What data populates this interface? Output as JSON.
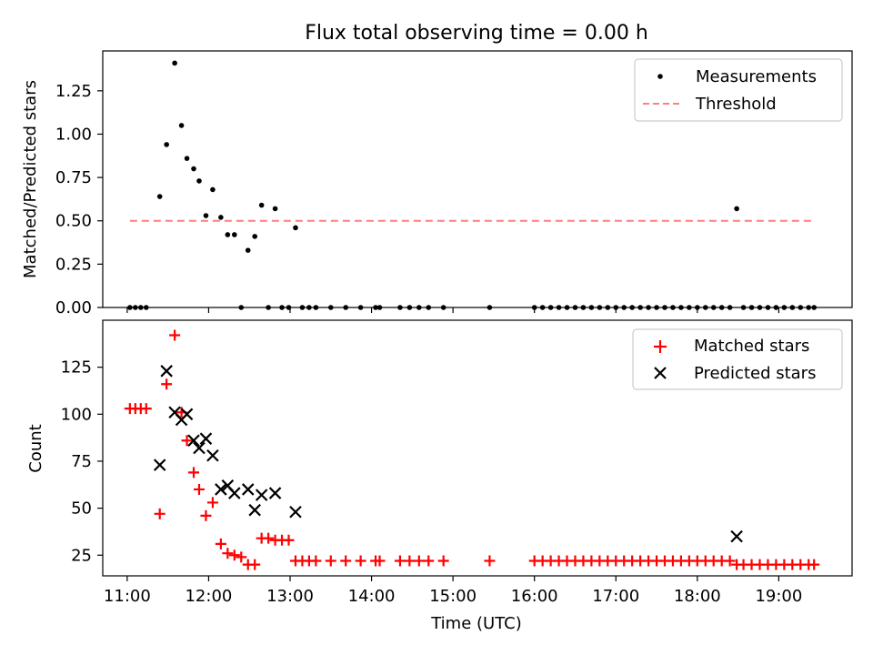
{
  "chart_data": [
    {
      "type": "scatter",
      "title": "Flux total observing time = 0.00 h",
      "xlabel": "",
      "ylabel": "Matched/Predicted stars",
      "xlim": [
        "10:42",
        "19:54"
      ],
      "ylim": [
        0,
        1.48
      ],
      "x_ticks": [
        "11:00",
        "12:00",
        "13:00",
        "14:00",
        "15:00",
        "16:00",
        "17:00",
        "18:00",
        "19:00"
      ],
      "y_ticks": [
        "0.00",
        "0.25",
        "0.50",
        "0.75",
        "1.00",
        "1.25"
      ],
      "legend": "top-right",
      "grid": false,
      "series": [
        {
          "name": "Measurements",
          "color": "#000000",
          "marker": "dot",
          "points": [
            [
              "11:02",
              0
            ],
            [
              "11:06",
              0
            ],
            [
              "11:10",
              0
            ],
            [
              "11:14",
              0
            ],
            [
              "11:24",
              0.64
            ],
            [
              "11:29",
              0.94
            ],
            [
              "11:35",
              1.41
            ],
            [
              "11:40",
              1.05
            ],
            [
              "11:44",
              0.86
            ],
            [
              "11:49",
              0.8
            ],
            [
              "11:53",
              0.73
            ],
            [
              "11:58",
              0.53
            ],
            [
              "12:03",
              0.68
            ],
            [
              "12:09",
              0.52
            ],
            [
              "12:14",
              0.42
            ],
            [
              "12:19",
              0.42
            ],
            [
              "12:24",
              0
            ],
            [
              "12:29",
              0.33
            ],
            [
              "12:34",
              0.41
            ],
            [
              "12:39",
              0.59
            ],
            [
              "12:44",
              0
            ],
            [
              "12:49",
              0.57
            ],
            [
              "12:54",
              0
            ],
            [
              "12:59",
              0
            ],
            [
              "13:04",
              0.46
            ],
            [
              "13:09",
              0
            ],
            [
              "13:14",
              0
            ],
            [
              "13:19",
              0
            ],
            [
              "13:30",
              0
            ],
            [
              "13:41",
              0
            ],
            [
              "13:52",
              0
            ],
            [
              "14:03",
              0
            ],
            [
              "14:06",
              0
            ],
            [
              "14:21",
              0
            ],
            [
              "14:28",
              0
            ],
            [
              "14:35",
              0
            ],
            [
              "14:42",
              0
            ],
            [
              "14:53",
              0
            ],
            [
              "15:27",
              0
            ],
            [
              "16:00",
              0
            ],
            [
              "16:06",
              0
            ],
            [
              "16:12",
              0
            ],
            [
              "16:18",
              0
            ],
            [
              "16:24",
              0
            ],
            [
              "16:30",
              0
            ],
            [
              "16:36",
              0
            ],
            [
              "16:42",
              0
            ],
            [
              "16:48",
              0
            ],
            [
              "16:54",
              0
            ],
            [
              "17:00",
              0
            ],
            [
              "17:06",
              0
            ],
            [
              "17:12",
              0
            ],
            [
              "17:18",
              0
            ],
            [
              "17:24",
              0
            ],
            [
              "17:30",
              0
            ],
            [
              "17:36",
              0
            ],
            [
              "17:42",
              0
            ],
            [
              "17:48",
              0
            ],
            [
              "17:54",
              0
            ],
            [
              "18:00",
              0
            ],
            [
              "18:06",
              0
            ],
            [
              "18:12",
              0
            ],
            [
              "18:18",
              0
            ],
            [
              "18:24",
              0
            ],
            [
              "18:29",
              0.57
            ],
            [
              "18:34",
              0
            ],
            [
              "18:40",
              0
            ],
            [
              "18:46",
              0
            ],
            [
              "18:52",
              0
            ],
            [
              "18:58",
              0
            ],
            [
              "19:04",
              0
            ],
            [
              "19:10",
              0
            ],
            [
              "19:16",
              0
            ],
            [
              "19:22",
              0
            ],
            [
              "19:26",
              0
            ]
          ]
        },
        {
          "name": "Threshold",
          "color": "#ff7f7f",
          "style": "dashed",
          "points": [
            [
              "11:02",
              0.5
            ],
            [
              "19:26",
              0.5
            ]
          ]
        }
      ]
    },
    {
      "type": "scatter",
      "title": "",
      "xlabel": "Time (UTC)",
      "ylabel": "Count",
      "xlim": [
        "10:42",
        "19:54"
      ],
      "ylim": [
        14,
        150
      ],
      "x_ticks": [
        "11:00",
        "12:00",
        "13:00",
        "14:00",
        "15:00",
        "16:00",
        "17:00",
        "18:00",
        "19:00"
      ],
      "y_ticks": [
        "25",
        "50",
        "75",
        "100",
        "125"
      ],
      "legend": "top-right",
      "grid": false,
      "series": [
        {
          "name": "Matched stars",
          "color": "#ff0000",
          "marker": "plus",
          "points": [
            [
              "11:02",
              103
            ],
            [
              "11:06",
              103
            ],
            [
              "11:10",
              103
            ],
            [
              "11:14",
              103
            ],
            [
              "11:24",
              47
            ],
            [
              "11:29",
              116
            ],
            [
              "11:35",
              142
            ],
            [
              "11:40",
              101
            ],
            [
              "11:44",
              86
            ],
            [
              "11:49",
              69
            ],
            [
              "11:53",
              60
            ],
            [
              "11:58",
              46
            ],
            [
              "12:03",
              53
            ],
            [
              "12:09",
              31
            ],
            [
              "12:14",
              26
            ],
            [
              "12:19",
              25
            ],
            [
              "12:24",
              24
            ],
            [
              "12:29",
              20
            ],
            [
              "12:34",
              20
            ],
            [
              "12:39",
              34
            ],
            [
              "12:44",
              34
            ],
            [
              "12:49",
              33
            ],
            [
              "12:54",
              33
            ],
            [
              "12:59",
              33
            ],
            [
              "13:04",
              22
            ],
            [
              "13:09",
              22
            ],
            [
              "13:14",
              22
            ],
            [
              "13:19",
              22
            ],
            [
              "13:30",
              22
            ],
            [
              "13:41",
              22
            ],
            [
              "13:52",
              22
            ],
            [
              "14:03",
              22
            ],
            [
              "14:06",
              22
            ],
            [
              "14:21",
              22
            ],
            [
              "14:28",
              22
            ],
            [
              "14:35",
              22
            ],
            [
              "14:42",
              22
            ],
            [
              "14:53",
              22
            ],
            [
              "15:27",
              22
            ],
            [
              "16:00",
              22
            ],
            [
              "16:06",
              22
            ],
            [
              "16:12",
              22
            ],
            [
              "16:18",
              22
            ],
            [
              "16:24",
              22
            ],
            [
              "16:30",
              22
            ],
            [
              "16:36",
              22
            ],
            [
              "16:42",
              22
            ],
            [
              "16:48",
              22
            ],
            [
              "16:54",
              22
            ],
            [
              "17:00",
              22
            ],
            [
              "17:06",
              22
            ],
            [
              "17:12",
              22
            ],
            [
              "17:18",
              22
            ],
            [
              "17:24",
              22
            ],
            [
              "17:30",
              22
            ],
            [
              "17:36",
              22
            ],
            [
              "17:42",
              22
            ],
            [
              "17:48",
              22
            ],
            [
              "17:54",
              22
            ],
            [
              "18:00",
              22
            ],
            [
              "18:06",
              22
            ],
            [
              "18:12",
              22
            ],
            [
              "18:18",
              22
            ],
            [
              "18:24",
              22
            ],
            [
              "18:29",
              20
            ],
            [
              "18:34",
              20
            ],
            [
              "18:40",
              20
            ],
            [
              "18:46",
              20
            ],
            [
              "18:52",
              20
            ],
            [
              "18:58",
              20
            ],
            [
              "19:04",
              20
            ],
            [
              "19:10",
              20
            ],
            [
              "19:16",
              20
            ],
            [
              "19:22",
              20
            ],
            [
              "19:26",
              20
            ]
          ]
        },
        {
          "name": "Predicted stars",
          "color": "#000000",
          "marker": "x",
          "points": [
            [
              "11:24",
              73
            ],
            [
              "11:29",
              123
            ],
            [
              "11:35",
              101
            ],
            [
              "11:40",
              97
            ],
            [
              "11:44",
              100
            ],
            [
              "11:49",
              86
            ],
            [
              "11:53",
              82
            ],
            [
              "11:58",
              87
            ],
            [
              "12:03",
              78
            ],
            [
              "12:09",
              60
            ],
            [
              "12:14",
              62
            ],
            [
              "12:19",
              58
            ],
            [
              "12:29",
              60
            ],
            [
              "12:34",
              49
            ],
            [
              "12:39",
              57
            ],
            [
              "12:49",
              58
            ],
            [
              "13:04",
              48
            ],
            [
              "18:29",
              35
            ]
          ]
        }
      ]
    }
  ]
}
